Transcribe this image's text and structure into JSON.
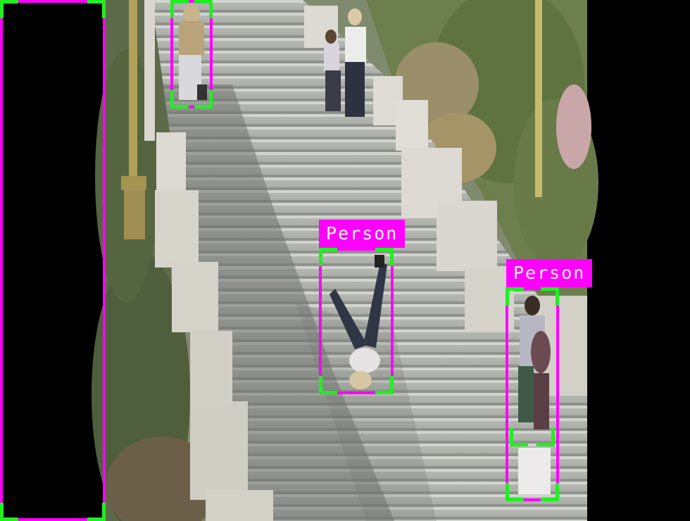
{
  "detection_labels": {
    "fallen_person": "Person",
    "walking_person": "Person"
  },
  "colors": {
    "box_outline": "#ff00ff",
    "box_corners": "#22ee22",
    "label_background": "#ff00ff",
    "label_text": "#ffffff",
    "letterbox": "#000000"
  }
}
